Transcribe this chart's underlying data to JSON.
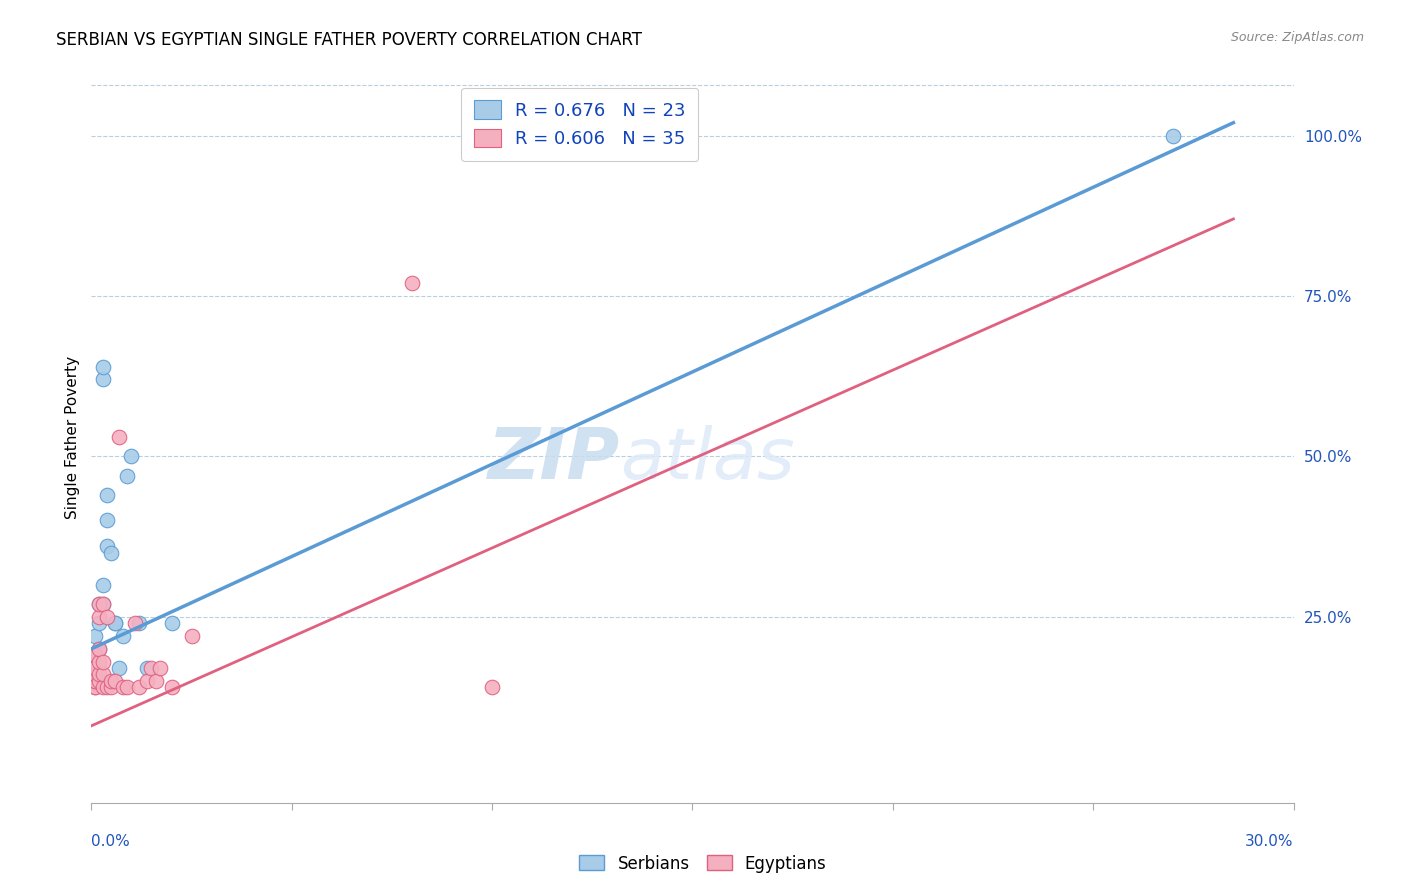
{
  "title": "SERBIAN VS EGYPTIAN SINGLE FATHER POVERTY CORRELATION CHART",
  "source": "Source: ZipAtlas.com",
  "ylabel": "Single Father Poverty",
  "right_yticks": [
    "100.0%",
    "75.0%",
    "50.0%",
    "25.0%"
  ],
  "right_ytick_vals": [
    1.0,
    0.75,
    0.5,
    0.25
  ],
  "xmin": 0.0,
  "xmax": 0.3,
  "ymin": -0.04,
  "ymax": 1.1,
  "legend_serbian": "R = 0.676   N = 23",
  "legend_egyptian": "R = 0.606   N = 35",
  "serbian_color": "#a8cce8",
  "egyptian_color": "#f5b0c0",
  "serbian_line_color": "#5b9bd5",
  "egyptian_line_color": "#e06080",
  "watermark_zip": "ZIP",
  "watermark_atlas": "atlas",
  "serbian_line": [
    0.0,
    0.2,
    0.285,
    1.02
  ],
  "egyptian_line": [
    0.0,
    0.08,
    0.285,
    0.87
  ],
  "serbian_points": [
    [
      0.001,
      0.19
    ],
    [
      0.001,
      0.22
    ],
    [
      0.002,
      0.2
    ],
    [
      0.002,
      0.24
    ],
    [
      0.002,
      0.27
    ],
    [
      0.003,
      0.27
    ],
    [
      0.003,
      0.3
    ],
    [
      0.003,
      0.62
    ],
    [
      0.003,
      0.64
    ],
    [
      0.004,
      0.36
    ],
    [
      0.004,
      0.4
    ],
    [
      0.004,
      0.44
    ],
    [
      0.005,
      0.35
    ],
    [
      0.006,
      0.24
    ],
    [
      0.006,
      0.24
    ],
    [
      0.007,
      0.17
    ],
    [
      0.008,
      0.22
    ],
    [
      0.009,
      0.47
    ],
    [
      0.01,
      0.5
    ],
    [
      0.012,
      0.24
    ],
    [
      0.014,
      0.17
    ],
    [
      0.02,
      0.24
    ],
    [
      0.27,
      1.0
    ]
  ],
  "egyptian_points": [
    [
      0.001,
      0.14
    ],
    [
      0.001,
      0.14
    ],
    [
      0.001,
      0.15
    ],
    [
      0.001,
      0.15
    ],
    [
      0.001,
      0.16
    ],
    [
      0.001,
      0.17
    ],
    [
      0.001,
      0.19
    ],
    [
      0.002,
      0.15
    ],
    [
      0.002,
      0.16
    ],
    [
      0.002,
      0.18
    ],
    [
      0.002,
      0.2
    ],
    [
      0.002,
      0.25
    ],
    [
      0.002,
      0.27
    ],
    [
      0.003,
      0.14
    ],
    [
      0.003,
      0.16
    ],
    [
      0.003,
      0.18
    ],
    [
      0.003,
      0.27
    ],
    [
      0.004,
      0.14
    ],
    [
      0.004,
      0.25
    ],
    [
      0.005,
      0.14
    ],
    [
      0.005,
      0.15
    ],
    [
      0.006,
      0.15
    ],
    [
      0.007,
      0.53
    ],
    [
      0.008,
      0.14
    ],
    [
      0.009,
      0.14
    ],
    [
      0.011,
      0.24
    ],
    [
      0.012,
      0.14
    ],
    [
      0.014,
      0.15
    ],
    [
      0.015,
      0.17
    ],
    [
      0.016,
      0.15
    ],
    [
      0.017,
      0.17
    ],
    [
      0.02,
      0.14
    ],
    [
      0.025,
      0.22
    ],
    [
      0.08,
      0.77
    ],
    [
      0.1,
      0.14
    ]
  ]
}
